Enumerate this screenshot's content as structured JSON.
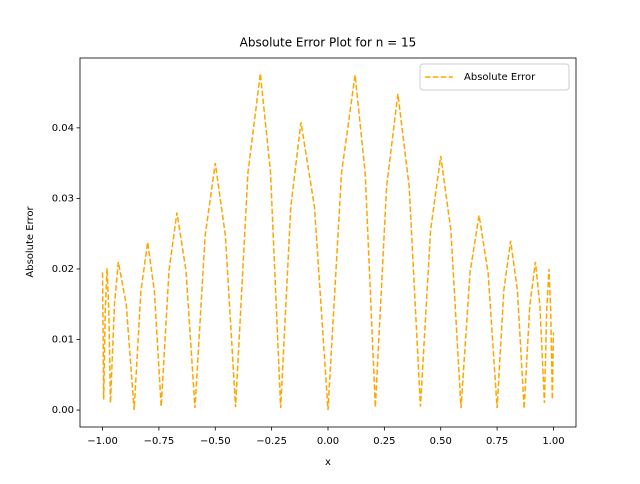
{
  "chart_data": {
    "type": "line",
    "title": "Absolute Error Plot for n = 15",
    "x_label": "x",
    "y_label": "Absolute Error",
    "x": [
      -1.0,
      -0.995,
      -0.988,
      -0.98,
      -0.972,
      -0.965,
      -0.947,
      -0.93,
      -0.895,
      -0.86,
      -0.83,
      -0.8,
      -0.77,
      -0.74,
      -0.705,
      -0.67,
      -0.63,
      -0.59,
      -0.545,
      -0.5,
      -0.455,
      -0.41,
      -0.355,
      -0.3,
      -0.255,
      -0.21,
      -0.165,
      -0.12,
      -0.06,
      0,
      0.06,
      0.12,
      0.165,
      0.21,
      0.26,
      0.31,
      0.36,
      0.41,
      0.455,
      0.5,
      0.545,
      0.59,
      0.63,
      0.67,
      0.71,
      0.75,
      0.78,
      0.81,
      0.84,
      0.87,
      0.895,
      0.92,
      0.94,
      0.96,
      0.97,
      0.98,
      0.988,
      0.995,
      1.0
    ],
    "series": [
      {
        "name": "Absolute Error",
        "color": "#ffa500",
        "dashed": true,
        "values": [
          0.0195,
          0.0015,
          0.014,
          0.0201,
          0.014,
          0.001,
          0.015,
          0.021,
          0.015,
          0.0,
          0.0168,
          0.0238,
          0.0168,
          0.0005,
          0.0198,
          0.028,
          0.0198,
          0.0003,
          0.0247,
          0.035,
          0.0247,
          0.0004,
          0.0337,
          0.0477,
          0.0337,
          0.0003,
          0.0288,
          0.0408,
          0.0288,
          0,
          0.0336,
          0.0475,
          0.0336,
          0.0004,
          0.0317,
          0.0448,
          0.0317,
          0.0005,
          0.0255,
          0.036,
          0.0255,
          0.0003,
          0.0195,
          0.0276,
          0.0195,
          0.0003,
          0.017,
          0.024,
          0.017,
          0.0002,
          0.0148,
          0.021,
          0.0148,
          0.001,
          0.014,
          0.02,
          0.014,
          0.0015,
          0.011
        ]
      }
    ],
    "xlim": [
      -1.1,
      1.1
    ],
    "ylim": [
      -0.0024,
      0.0499
    ],
    "xticks": [
      {
        "value": -1,
        "label": "−1.00"
      },
      {
        "value": -0.75,
        "label": "−0.75"
      },
      {
        "value": -0.5,
        "label": "−0.50"
      },
      {
        "value": -0.25,
        "label": "−0.25"
      },
      {
        "value": 0,
        "label": "0.00"
      },
      0.25,
      {
        "value": 0.5,
        "label": "0.50"
      },
      0.75,
      {
        "value": 1,
        "label": "1.00"
      }
    ],
    "yticks": [
      {
        "value": 0,
        "label": "0.00"
      },
      0.01,
      0.02,
      0.03,
      0.04
    ],
    "grid": false,
    "legend": "upper right"
  }
}
